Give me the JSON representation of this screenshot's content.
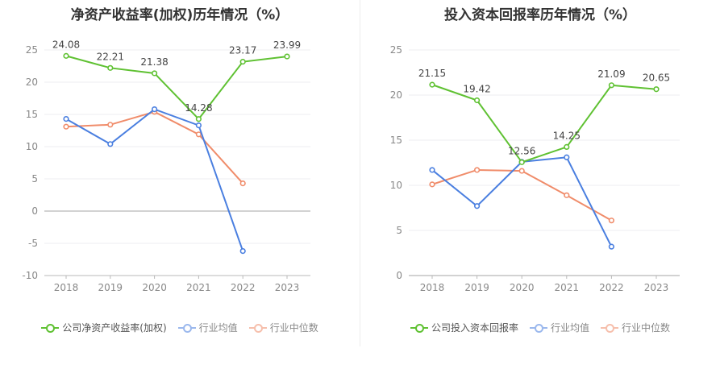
{
  "chart_data": [
    {
      "type": "line",
      "title": "净资产收益率(加权)历年情况（%）",
      "categories": [
        "2018",
        "2019",
        "2020",
        "2021",
        "2022",
        "2023"
      ],
      "ylim": [
        -10,
        25
      ],
      "yticks": [
        25,
        20,
        15,
        10,
        5,
        0,
        -5,
        -10
      ],
      "grid": true,
      "legend_position": "bottom",
      "series": [
        {
          "name": "公司净资产收益率(加权)",
          "color": "#5fc132",
          "values": [
            24.08,
            22.21,
            21.38,
            14.28,
            23.17,
            23.99
          ],
          "labels": [
            "24.08",
            "22.21",
            "21.38",
            "14.28",
            "23.17",
            "23.99"
          ]
        },
        {
          "name": "行业均值",
          "color": "#4a7fe0",
          "values": [
            14.3,
            10.4,
            15.8,
            13.3,
            -6.2,
            null
          ]
        },
        {
          "name": "行业中位数",
          "color": "#f08c6a",
          "values": [
            13.1,
            13.4,
            15.4,
            11.9,
            4.3,
            null
          ]
        }
      ]
    },
    {
      "type": "line",
      "title": "投入资本回报率历年情况（%）",
      "categories": [
        "2018",
        "2019",
        "2020",
        "2021",
        "2022",
        "2023"
      ],
      "ylim": [
        0,
        25
      ],
      "yticks": [
        25,
        20,
        15,
        10,
        5,
        0
      ],
      "grid": true,
      "legend_position": "bottom",
      "series": [
        {
          "name": "公司投入资本回报率",
          "color": "#5fc132",
          "values": [
            21.15,
            19.42,
            12.56,
            14.25,
            21.09,
            20.65
          ],
          "labels": [
            "21.15",
            "19.42",
            "12.56",
            "14.25",
            "21.09",
            "20.65"
          ]
        },
        {
          "name": "行业均值",
          "color": "#4a7fe0",
          "values": [
            11.7,
            7.7,
            12.6,
            13.1,
            3.2,
            null
          ]
        },
        {
          "name": "行业中位数",
          "color": "#f08c6a",
          "values": [
            10.1,
            11.7,
            11.6,
            8.9,
            6.1,
            null
          ]
        }
      ]
    }
  ]
}
